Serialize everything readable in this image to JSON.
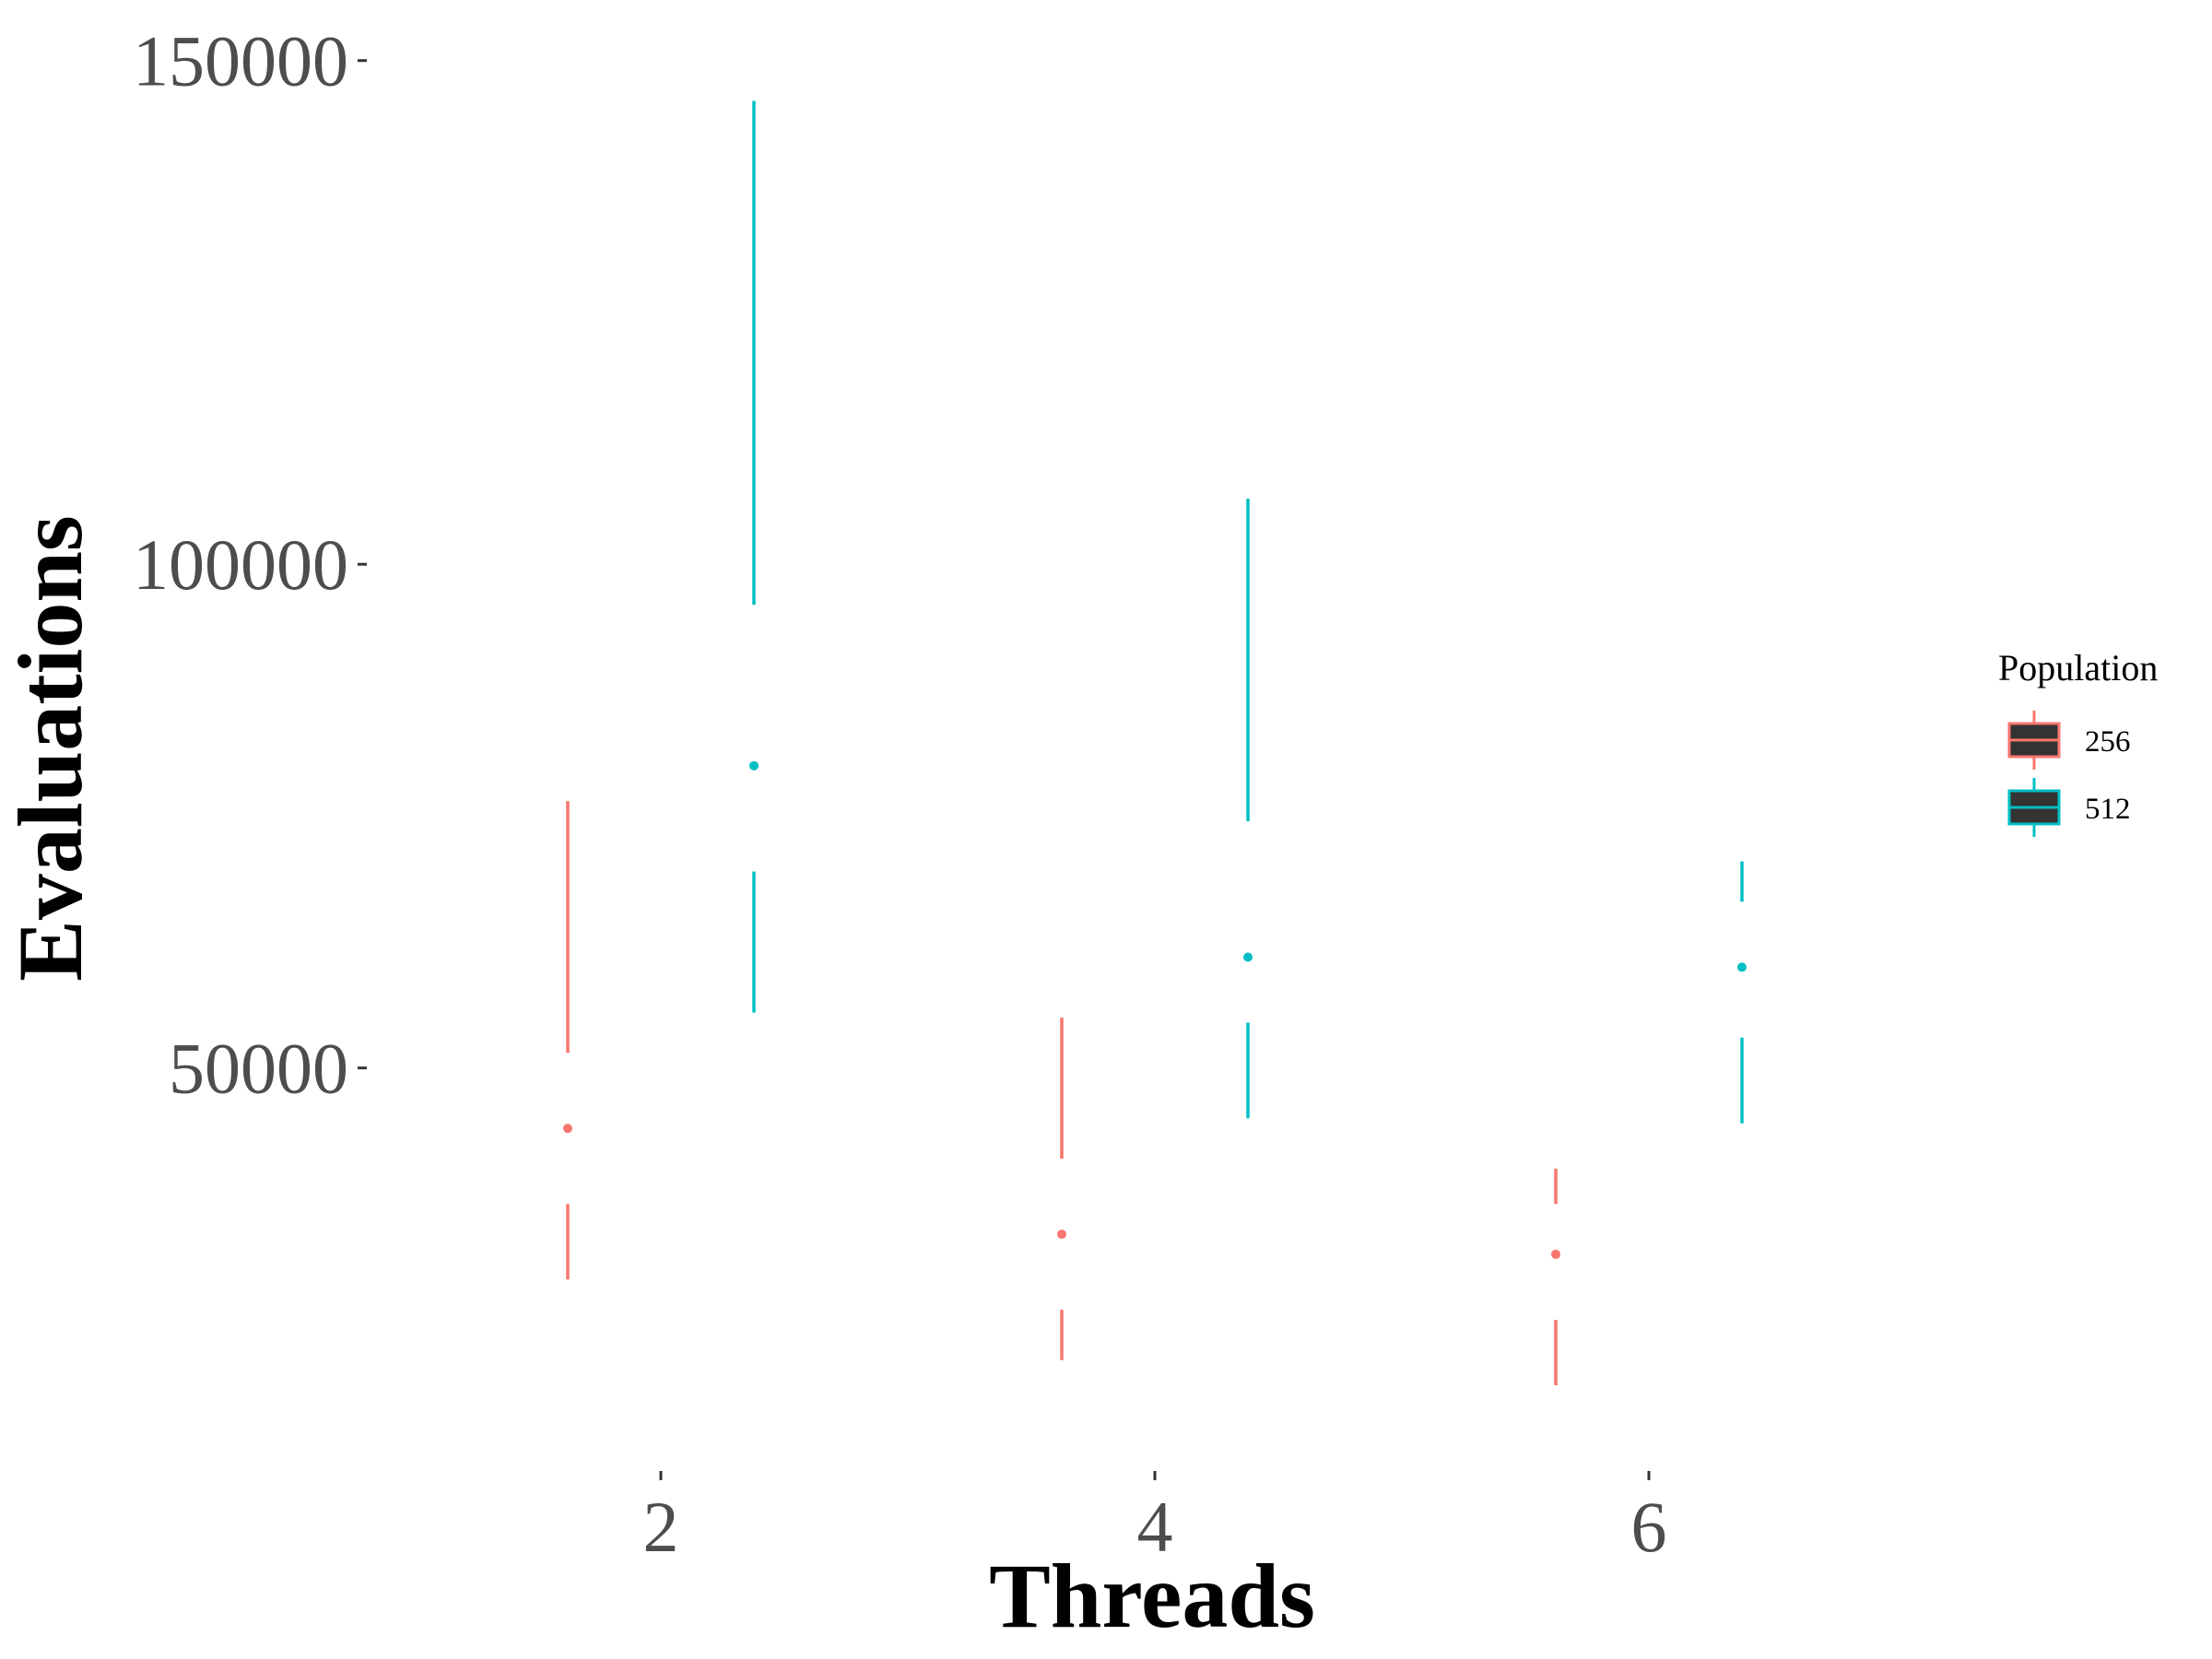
{
  "chart_data": {
    "type": "boxplot",
    "title": "",
    "xlabel": "Threads",
    "ylabel": "Evaluations",
    "x_categories": [
      "2",
      "4",
      "6"
    ],
    "ylim": [
      11000,
      154000
    ],
    "y_ticks": [
      50000,
      100000,
      150000
    ],
    "y_tick_labels": [
      "50000",
      "100000",
      "150000"
    ],
    "grid": false,
    "legend": {
      "title": "Population",
      "position": "right"
    },
    "series": [
      {
        "name": "256",
        "color": "#F8766D",
        "boxes": [
          {
            "x": "2",
            "whisker_low": 29000,
            "q1": 36500,
            "median": 44000,
            "q3": 51500,
            "whisker_high": 76500
          },
          {
            "x": "4",
            "whisker_low": 21000,
            "q1": 26000,
            "median": 33500,
            "q3": 41000,
            "whisker_high": 55000
          },
          {
            "x": "6",
            "whisker_low": 18500,
            "q1": 25000,
            "median": 31500,
            "q3": 36500,
            "whisker_high": 40000
          }
        ]
      },
      {
        "name": "512",
        "color": "#00BFC4",
        "boxes": [
          {
            "x": "2",
            "whisker_low": 55500,
            "q1": 69500,
            "median": 80000,
            "q3": 96000,
            "whisker_high": 146000
          },
          {
            "x": "4",
            "whisker_low": 45000,
            "q1": 54500,
            "median": 61000,
            "q3": 74500,
            "whisker_high": 106500
          },
          {
            "x": "6",
            "whisker_low": 44500,
            "q1": 53000,
            "median": 60000,
            "q3": 66500,
            "whisker_high": 70500
          }
        ]
      }
    ]
  }
}
